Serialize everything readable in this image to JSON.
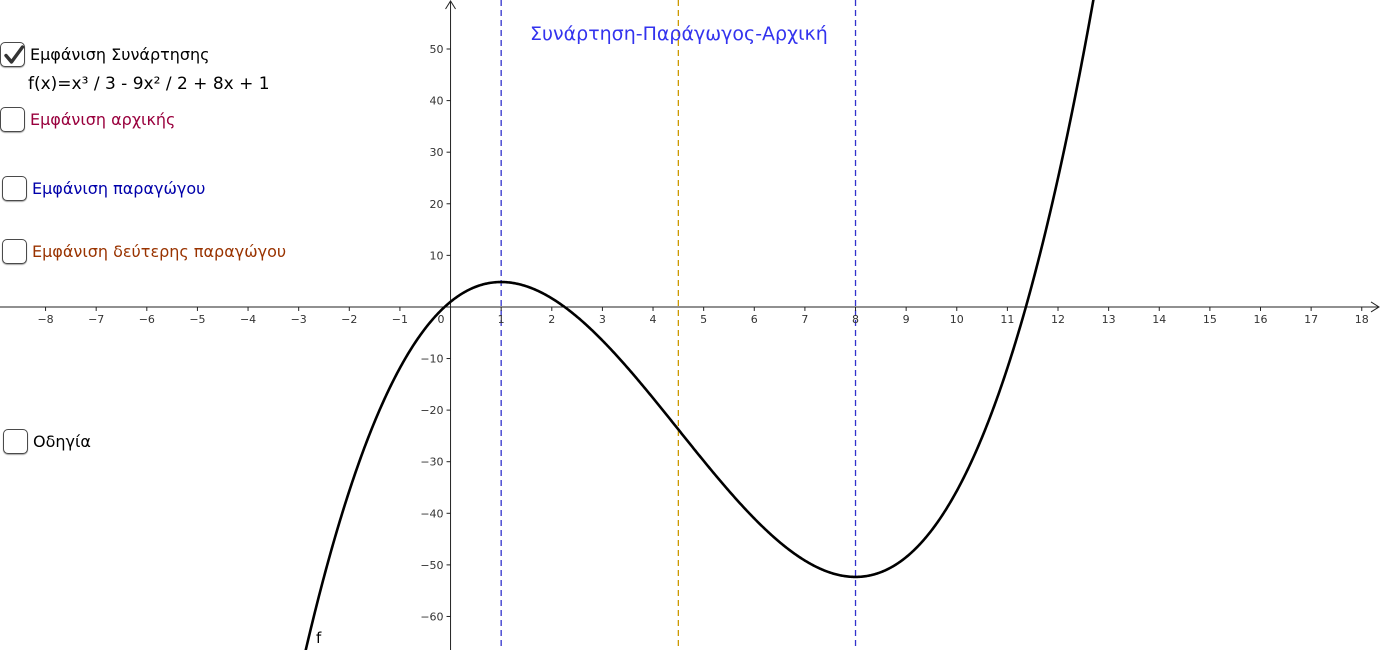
{
  "graph": {
    "title": "Συνάρτηση-Παράγωγος-Αρχική",
    "title_color": "#3333ee",
    "function_label": "f",
    "function_color": "#000000",
    "x_ticks": [
      -8,
      -7,
      -6,
      -5,
      -4,
      -3,
      -2,
      -1,
      1,
      2,
      3,
      4,
      5,
      6,
      7,
      8,
      9,
      10,
      11,
      12,
      13,
      14,
      15,
      16,
      17,
      18
    ],
    "y_ticks": [
      50,
      40,
      30,
      20,
      10,
      -10,
      -20,
      -30,
      -40,
      -50,
      -60
    ],
    "origin_label": "0",
    "x_range": [
      -8.9,
      18.4
    ],
    "y_range": [
      -66.5,
      59.5
    ],
    "vertical_lines": [
      {
        "x": 1,
        "color": "#3333cc",
        "style": "dashed"
      },
      {
        "x": 4.5,
        "color": "#cc9900",
        "style": "dashed"
      },
      {
        "x": 8,
        "color": "#3333cc",
        "style": "dashed"
      }
    ]
  },
  "panel": {
    "show_function": {
      "label": "Εμφάνιση Συνάρτησης",
      "checked": true,
      "color": "#000000",
      "check_icon": "checkmark-icon"
    },
    "formula": "f(x)=x³ / 3 - 9x² / 2 + 8x + 1",
    "show_antiderivative": {
      "label": "Εμφάνιση αρχικής",
      "checked": false,
      "color": "#99003d"
    },
    "show_derivative": {
      "label": "Εμφάνιση παραγώγου",
      "checked": false,
      "color": "#0000aa"
    },
    "show_second_derivative": {
      "label": "Εμφάνιση δεύτερης παραγώγου",
      "checked": false,
      "color": "#993300"
    },
    "instructions": {
      "label": "Οδηγία",
      "checked": false,
      "color": "#000000"
    }
  }
}
